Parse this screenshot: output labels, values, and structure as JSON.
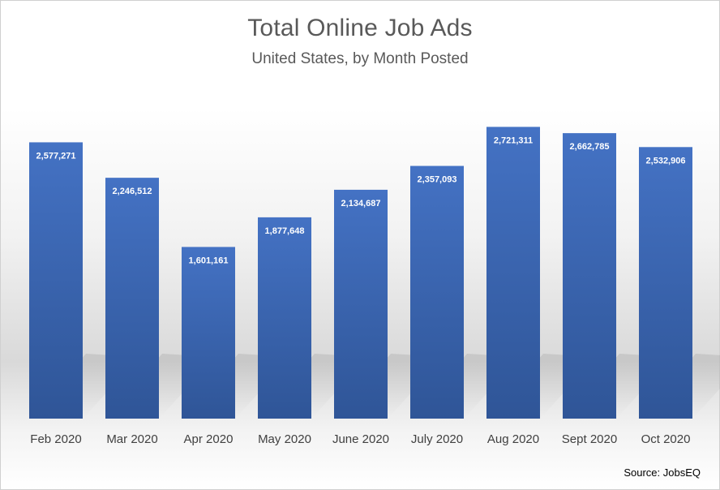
{
  "chart_data": {
    "type": "bar",
    "title": "Total Online Job Ads",
    "subtitle": "United States, by Month Posted",
    "categories": [
      "Feb 2020",
      "Mar 2020",
      "Apr 2020",
      "May 2020",
      "June 2020",
      "July 2020",
      "Aug 2020",
      "Sept 2020",
      "Oct 2020"
    ],
    "values": [
      2577271,
      2246512,
      1601161,
      1877648,
      2134687,
      2357093,
      2721311,
      2662785,
      2532906
    ],
    "data_labels": [
      "2,577,271",
      "2,246,512",
      "1,601,161",
      "1,877,648",
      "2,134,687",
      "2,357,093",
      "2,721,311",
      "2,662,785",
      "2,532,906"
    ],
    "ylim": [
      0,
      2800000
    ],
    "grid": false,
    "legend": "none",
    "bar_color_top": "#4472c4",
    "bar_color_bottom": "#2f5597",
    "source": "Source: JobsEQ"
  }
}
